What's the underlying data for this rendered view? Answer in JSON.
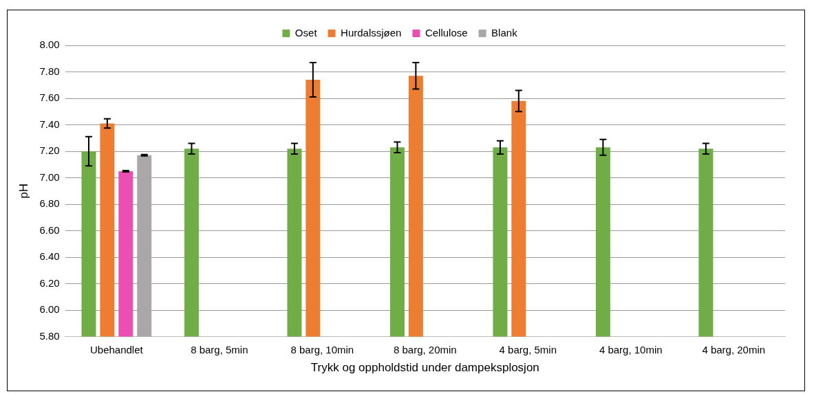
{
  "chart_data": {
    "type": "bar",
    "xlabel": "Trykk og oppholdstid under dampeksplosjon",
    "ylabel": "pH",
    "categories": [
      "Ubehandlet",
      "8 barg, 5min",
      "8 barg, 10min",
      "8 barg, 20min",
      "4 barg, 5min",
      "4 barg, 10min",
      "4 barg, 20min"
    ],
    "series": [
      {
        "name": "Oset",
        "color": "#70ad47",
        "values": [
          7.2,
          7.22,
          7.22,
          7.23,
          7.23,
          7.23,
          7.22
        ],
        "errors": [
          0.11,
          0.04,
          0.04,
          0.04,
          0.05,
          0.06,
          0.04
        ]
      },
      {
        "name": "Hurdalssjøen",
        "color": "#ed7d31",
        "values": [
          7.41,
          null,
          7.74,
          7.77,
          7.58,
          null,
          null
        ],
        "errors": [
          0.035,
          null,
          0.13,
          0.1,
          0.08,
          null,
          null
        ]
      },
      {
        "name": "Cellulose",
        "color": "#ec4fb4",
        "values": [
          7.05,
          null,
          null,
          null,
          null,
          null,
          null
        ],
        "errors": [
          0.005,
          null,
          null,
          null,
          null,
          null,
          null
        ]
      },
      {
        "name": "Blank",
        "color": "#a9a7a7",
        "values": [
          7.17,
          null,
          null,
          null,
          null,
          null,
          null
        ],
        "errors": [
          0.005,
          null,
          null,
          null,
          null,
          null,
          null
        ]
      }
    ],
    "ylim": [
      5.8,
      8.0
    ],
    "yticks": [
      {
        "value": 5.8,
        "label": "5.80"
      },
      {
        "value": 6.0,
        "label": "6.00"
      },
      {
        "value": 6.2,
        "label": "6.20"
      },
      {
        "value": 6.4,
        "label": "6.40"
      },
      {
        "value": 6.6,
        "label": "6.60"
      },
      {
        "value": 6.8,
        "label": "6.80"
      },
      {
        "value": 7.0,
        "label": "7.00"
      },
      {
        "value": 7.2,
        "label": "7.20"
      },
      {
        "value": 7.4,
        "label": "7.40"
      },
      {
        "value": 7.6,
        "label": "7.60"
      },
      {
        "value": 7.8,
        "label": "7.80"
      },
      {
        "value": 8.0,
        "label": "8.00"
      }
    ],
    "grid": "y",
    "legend": "top"
  }
}
